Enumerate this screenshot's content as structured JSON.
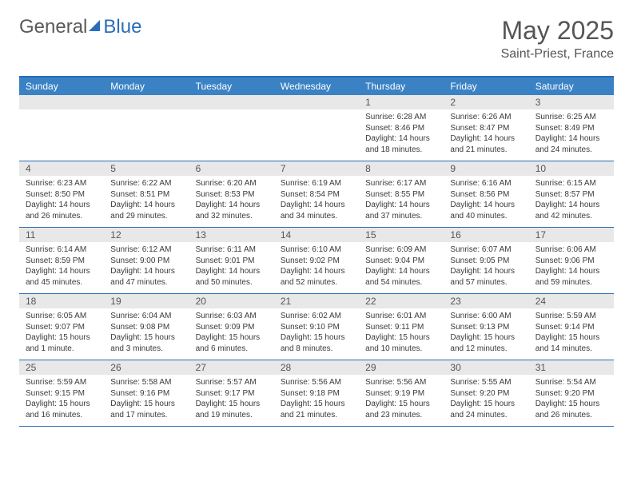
{
  "logo": {
    "text1": "General",
    "text2": "Blue"
  },
  "header": {
    "title": "May 2025",
    "location": "Saint-Priest, France"
  },
  "dayNames": [
    "Sunday",
    "Monday",
    "Tuesday",
    "Wednesday",
    "Thursday",
    "Friday",
    "Saturday"
  ],
  "colors": {
    "headerBlue": "#3b82c4",
    "borderBlue": "#2a6db8",
    "grayBg": "#e8e8e8",
    "textGray": "#555555",
    "textDark": "#3a3a3a"
  },
  "weeks": [
    [
      {
        "num": "",
        "sunrise": "",
        "sunset": "",
        "daylight": ""
      },
      {
        "num": "",
        "sunrise": "",
        "sunset": "",
        "daylight": ""
      },
      {
        "num": "",
        "sunrise": "",
        "sunset": "",
        "daylight": ""
      },
      {
        "num": "",
        "sunrise": "",
        "sunset": "",
        "daylight": ""
      },
      {
        "num": "1",
        "sunrise": "Sunrise: 6:28 AM",
        "sunset": "Sunset: 8:46 PM",
        "daylight": "Daylight: 14 hours and 18 minutes."
      },
      {
        "num": "2",
        "sunrise": "Sunrise: 6:26 AM",
        "sunset": "Sunset: 8:47 PM",
        "daylight": "Daylight: 14 hours and 21 minutes."
      },
      {
        "num": "3",
        "sunrise": "Sunrise: 6:25 AM",
        "sunset": "Sunset: 8:49 PM",
        "daylight": "Daylight: 14 hours and 24 minutes."
      }
    ],
    [
      {
        "num": "4",
        "sunrise": "Sunrise: 6:23 AM",
        "sunset": "Sunset: 8:50 PM",
        "daylight": "Daylight: 14 hours and 26 minutes."
      },
      {
        "num": "5",
        "sunrise": "Sunrise: 6:22 AM",
        "sunset": "Sunset: 8:51 PM",
        "daylight": "Daylight: 14 hours and 29 minutes."
      },
      {
        "num": "6",
        "sunrise": "Sunrise: 6:20 AM",
        "sunset": "Sunset: 8:53 PM",
        "daylight": "Daylight: 14 hours and 32 minutes."
      },
      {
        "num": "7",
        "sunrise": "Sunrise: 6:19 AM",
        "sunset": "Sunset: 8:54 PM",
        "daylight": "Daylight: 14 hours and 34 minutes."
      },
      {
        "num": "8",
        "sunrise": "Sunrise: 6:17 AM",
        "sunset": "Sunset: 8:55 PM",
        "daylight": "Daylight: 14 hours and 37 minutes."
      },
      {
        "num": "9",
        "sunrise": "Sunrise: 6:16 AM",
        "sunset": "Sunset: 8:56 PM",
        "daylight": "Daylight: 14 hours and 40 minutes."
      },
      {
        "num": "10",
        "sunrise": "Sunrise: 6:15 AM",
        "sunset": "Sunset: 8:57 PM",
        "daylight": "Daylight: 14 hours and 42 minutes."
      }
    ],
    [
      {
        "num": "11",
        "sunrise": "Sunrise: 6:14 AM",
        "sunset": "Sunset: 8:59 PM",
        "daylight": "Daylight: 14 hours and 45 minutes."
      },
      {
        "num": "12",
        "sunrise": "Sunrise: 6:12 AM",
        "sunset": "Sunset: 9:00 PM",
        "daylight": "Daylight: 14 hours and 47 minutes."
      },
      {
        "num": "13",
        "sunrise": "Sunrise: 6:11 AM",
        "sunset": "Sunset: 9:01 PM",
        "daylight": "Daylight: 14 hours and 50 minutes."
      },
      {
        "num": "14",
        "sunrise": "Sunrise: 6:10 AM",
        "sunset": "Sunset: 9:02 PM",
        "daylight": "Daylight: 14 hours and 52 minutes."
      },
      {
        "num": "15",
        "sunrise": "Sunrise: 6:09 AM",
        "sunset": "Sunset: 9:04 PM",
        "daylight": "Daylight: 14 hours and 54 minutes."
      },
      {
        "num": "16",
        "sunrise": "Sunrise: 6:07 AM",
        "sunset": "Sunset: 9:05 PM",
        "daylight": "Daylight: 14 hours and 57 minutes."
      },
      {
        "num": "17",
        "sunrise": "Sunrise: 6:06 AM",
        "sunset": "Sunset: 9:06 PM",
        "daylight": "Daylight: 14 hours and 59 minutes."
      }
    ],
    [
      {
        "num": "18",
        "sunrise": "Sunrise: 6:05 AM",
        "sunset": "Sunset: 9:07 PM",
        "daylight": "Daylight: 15 hours and 1 minute."
      },
      {
        "num": "19",
        "sunrise": "Sunrise: 6:04 AM",
        "sunset": "Sunset: 9:08 PM",
        "daylight": "Daylight: 15 hours and 3 minutes."
      },
      {
        "num": "20",
        "sunrise": "Sunrise: 6:03 AM",
        "sunset": "Sunset: 9:09 PM",
        "daylight": "Daylight: 15 hours and 6 minutes."
      },
      {
        "num": "21",
        "sunrise": "Sunrise: 6:02 AM",
        "sunset": "Sunset: 9:10 PM",
        "daylight": "Daylight: 15 hours and 8 minutes."
      },
      {
        "num": "22",
        "sunrise": "Sunrise: 6:01 AM",
        "sunset": "Sunset: 9:11 PM",
        "daylight": "Daylight: 15 hours and 10 minutes."
      },
      {
        "num": "23",
        "sunrise": "Sunrise: 6:00 AM",
        "sunset": "Sunset: 9:13 PM",
        "daylight": "Daylight: 15 hours and 12 minutes."
      },
      {
        "num": "24",
        "sunrise": "Sunrise: 5:59 AM",
        "sunset": "Sunset: 9:14 PM",
        "daylight": "Daylight: 15 hours and 14 minutes."
      }
    ],
    [
      {
        "num": "25",
        "sunrise": "Sunrise: 5:59 AM",
        "sunset": "Sunset: 9:15 PM",
        "daylight": "Daylight: 15 hours and 16 minutes."
      },
      {
        "num": "26",
        "sunrise": "Sunrise: 5:58 AM",
        "sunset": "Sunset: 9:16 PM",
        "daylight": "Daylight: 15 hours and 17 minutes."
      },
      {
        "num": "27",
        "sunrise": "Sunrise: 5:57 AM",
        "sunset": "Sunset: 9:17 PM",
        "daylight": "Daylight: 15 hours and 19 minutes."
      },
      {
        "num": "28",
        "sunrise": "Sunrise: 5:56 AM",
        "sunset": "Sunset: 9:18 PM",
        "daylight": "Daylight: 15 hours and 21 minutes."
      },
      {
        "num": "29",
        "sunrise": "Sunrise: 5:56 AM",
        "sunset": "Sunset: 9:19 PM",
        "daylight": "Daylight: 15 hours and 23 minutes."
      },
      {
        "num": "30",
        "sunrise": "Sunrise: 5:55 AM",
        "sunset": "Sunset: 9:20 PM",
        "daylight": "Daylight: 15 hours and 24 minutes."
      },
      {
        "num": "31",
        "sunrise": "Sunrise: 5:54 AM",
        "sunset": "Sunset: 9:20 PM",
        "daylight": "Daylight: 15 hours and 26 minutes."
      }
    ]
  ]
}
